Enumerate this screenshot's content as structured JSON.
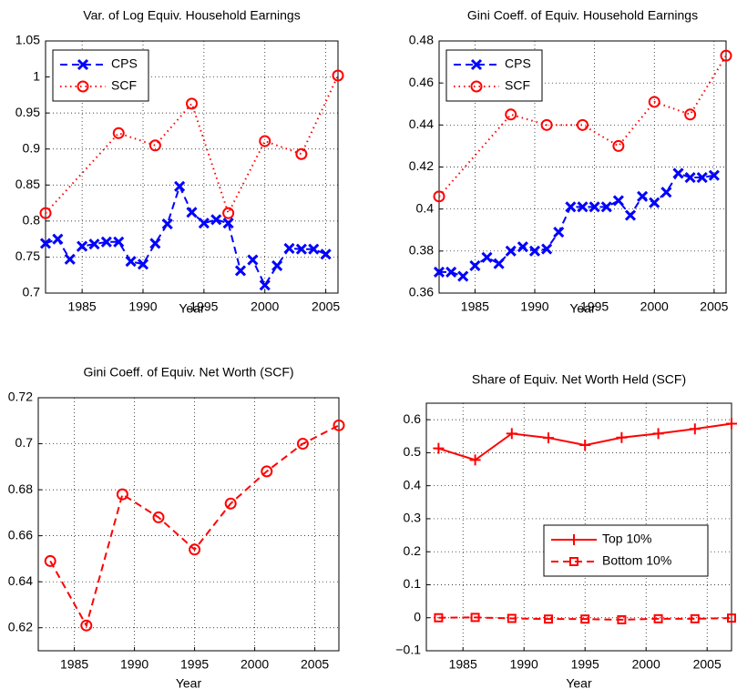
{
  "chart_data": [
    {
      "type": "line",
      "title": "Var. of Log Equiv. Household Earnings",
      "x_label": "Year",
      "xlim": [
        1982,
        2006
      ],
      "xticks": [
        1985,
        1990,
        1995,
        2000,
        2005
      ],
      "ylim": [
        0.7,
        1.05
      ],
      "yticks": [
        0.7,
        0.75,
        0.8,
        0.85,
        0.9,
        0.95,
        1,
        1.05
      ],
      "grid": true,
      "legend": "upper left",
      "series": [
        {
          "name": "CPS",
          "color": "#0000ff",
          "marker": "x",
          "linestyle": "dashed",
          "x": [
            1982,
            1983,
            1984,
            1985,
            1986,
            1987,
            1988,
            1989,
            1990,
            1991,
            1992,
            1993,
            1994,
            1995,
            1996,
            1997,
            1998,
            1999,
            2000,
            2001,
            2002,
            2003,
            2004,
            2005
          ],
          "values": [
            0.769,
            0.775,
            0.747,
            0.765,
            0.768,
            0.771,
            0.771,
            0.744,
            0.74,
            0.769,
            0.796,
            0.848,
            0.812,
            0.797,
            0.802,
            0.797,
            0.731,
            0.746,
            0.711,
            0.738,
            0.762,
            0.761,
            0.761,
            0.754
          ]
        },
        {
          "name": "SCF",
          "color": "#ff0000",
          "marker": "o",
          "linestyle": "dotted",
          "x": [
            1982,
            1988,
            1991,
            1994,
            1997,
            2000,
            2003,
            2006
          ],
          "values": [
            0.811,
            0.922,
            0.905,
            0.963,
            0.811,
            0.911,
            0.893,
            1.002
          ]
        }
      ]
    },
    {
      "type": "line",
      "title": "Gini Coeff. of Equiv. Household Earnings",
      "x_label": "Year",
      "xlim": [
        1982,
        2006
      ],
      "xticks": [
        1985,
        1990,
        1995,
        2000,
        2005
      ],
      "ylim": [
        0.36,
        0.48
      ],
      "yticks": [
        0.36,
        0.38,
        0.4,
        0.42,
        0.44,
        0.46,
        0.48
      ],
      "grid": true,
      "legend": "upper left",
      "series": [
        {
          "name": "CPS",
          "color": "#0000ff",
          "marker": "x",
          "linestyle": "dashed",
          "x": [
            1982,
            1983,
            1984,
            1985,
            1986,
            1987,
            1988,
            1989,
            1990,
            1991,
            1992,
            1993,
            1994,
            1995,
            1996,
            1997,
            1998,
            1999,
            2000,
            2001,
            2002,
            2003,
            2004,
            2005
          ],
          "values": [
            0.37,
            0.37,
            0.368,
            0.373,
            0.377,
            0.374,
            0.38,
            0.382,
            0.38,
            0.381,
            0.389,
            0.401,
            0.401,
            0.401,
            0.401,
            0.404,
            0.397,
            0.406,
            0.403,
            0.408,
            0.417,
            0.415,
            0.415,
            0.416
          ]
        },
        {
          "name": "SCF",
          "color": "#ff0000",
          "marker": "o",
          "linestyle": "dotted",
          "x": [
            1982,
            1988,
            1991,
            1994,
            1997,
            2000,
            2003,
            2006
          ],
          "values": [
            0.406,
            0.445,
            0.44,
            0.44,
            0.43,
            0.451,
            0.445,
            0.473
          ]
        }
      ]
    },
    {
      "type": "line",
      "title": "Gini Coeff. of Equiv. Net Worth (SCF)",
      "x_label": "Year",
      "xlim": [
        1982,
        2007
      ],
      "xticks": [
        1985,
        1990,
        1995,
        2000,
        2005
      ],
      "ylim": [
        0.61,
        0.72
      ],
      "yticks": [
        0.62,
        0.64,
        0.66,
        0.68,
        0.7,
        0.72
      ],
      "grid": true,
      "series": [
        {
          "color": "#ff0000",
          "marker": "o",
          "linestyle": "dashed",
          "x": [
            1983,
            1986,
            1989,
            1992,
            1995,
            1998,
            2001,
            2004,
            2007
          ],
          "values": [
            0.649,
            0.621,
            0.678,
            0.668,
            0.654,
            0.674,
            0.688,
            0.7,
            0.708
          ]
        }
      ]
    },
    {
      "type": "line",
      "title": "Share of Equiv. Net Worth Held (SCF)",
      "x_label": "Year",
      "xlim": [
        1982,
        2007
      ],
      "xticks": [
        1985,
        1990,
        1995,
        2000,
        2005
      ],
      "ylim": [
        -0.1,
        0.65
      ],
      "yticks": [
        {
          "value": -0.1,
          "label": "−0.1"
        },
        0,
        0.1,
        0.2,
        0.3,
        0.4,
        0.5,
        0.6
      ],
      "grid": true,
      "legend": "lower right",
      "series": [
        {
          "name": "Top 10%",
          "color": "#ff0000",
          "marker": "+",
          "linestyle": "solid",
          "x": [
            1983,
            1986,
            1989,
            1992,
            1995,
            1998,
            2001,
            2004,
            2007
          ],
          "values": [
            0.513,
            0.478,
            0.558,
            0.545,
            0.523,
            0.546,
            0.558,
            0.572,
            0.588
          ]
        },
        {
          "name": "Bottom 10%",
          "color": "#ff0000",
          "marker": "s",
          "linestyle": "dashed",
          "x": [
            1983,
            1986,
            1989,
            1992,
            1995,
            1998,
            2001,
            2004,
            2007
          ],
          "values": [
            0,
            0.001,
            -0.002,
            -0.004,
            -0.004,
            -0.006,
            -0.003,
            -0.003,
            -0.001
          ]
        }
      ]
    }
  ]
}
